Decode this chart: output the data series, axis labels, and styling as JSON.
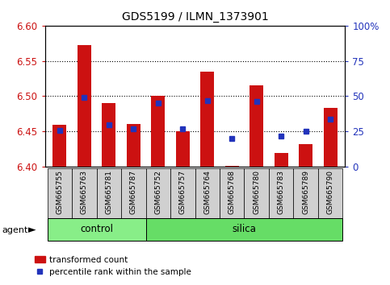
{
  "title": "GDS5199 / ILMN_1373901",
  "samples": [
    "GSM665755",
    "GSM665763",
    "GSM665781",
    "GSM665787",
    "GSM665752",
    "GSM665757",
    "GSM665764",
    "GSM665768",
    "GSM665780",
    "GSM665783",
    "GSM665789",
    "GSM665790"
  ],
  "groups": [
    "control",
    "control",
    "control",
    "control",
    "silica",
    "silica",
    "silica",
    "silica",
    "silica",
    "silica",
    "silica",
    "silica"
  ],
  "bar_values": [
    6.46,
    6.573,
    6.49,
    6.461,
    6.5,
    6.45,
    6.535,
    6.401,
    6.515,
    6.42,
    6.432,
    6.483
  ],
  "bar_base": 6.4,
  "percentile_values": [
    26,
    49,
    30,
    27,
    45,
    27,
    47,
    20,
    46,
    22,
    25,
    34
  ],
  "ylim_left": [
    6.4,
    6.6
  ],
  "ylim_right": [
    0,
    100
  ],
  "yticks_left": [
    6.4,
    6.45,
    6.5,
    6.55,
    6.6
  ],
  "yticks_right": [
    0,
    25,
    50,
    75,
    100
  ],
  "ytick_labels_right": [
    "0",
    "25",
    "50",
    "75",
    "100%"
  ],
  "bar_color": "#cc1111",
  "marker_color": "#2233bb",
  "control_color": "#88ee88",
  "silica_color": "#66dd66",
  "agent_label": "agent",
  "control_samples": 4,
  "grid_color": "black",
  "tick_color_left": "#cc1111",
  "tick_color_right": "#2233bb",
  "bar_width": 0.55,
  "label_bg": "#d0d0d0",
  "fig_width": 4.83,
  "fig_height": 3.54,
  "dpi": 100
}
